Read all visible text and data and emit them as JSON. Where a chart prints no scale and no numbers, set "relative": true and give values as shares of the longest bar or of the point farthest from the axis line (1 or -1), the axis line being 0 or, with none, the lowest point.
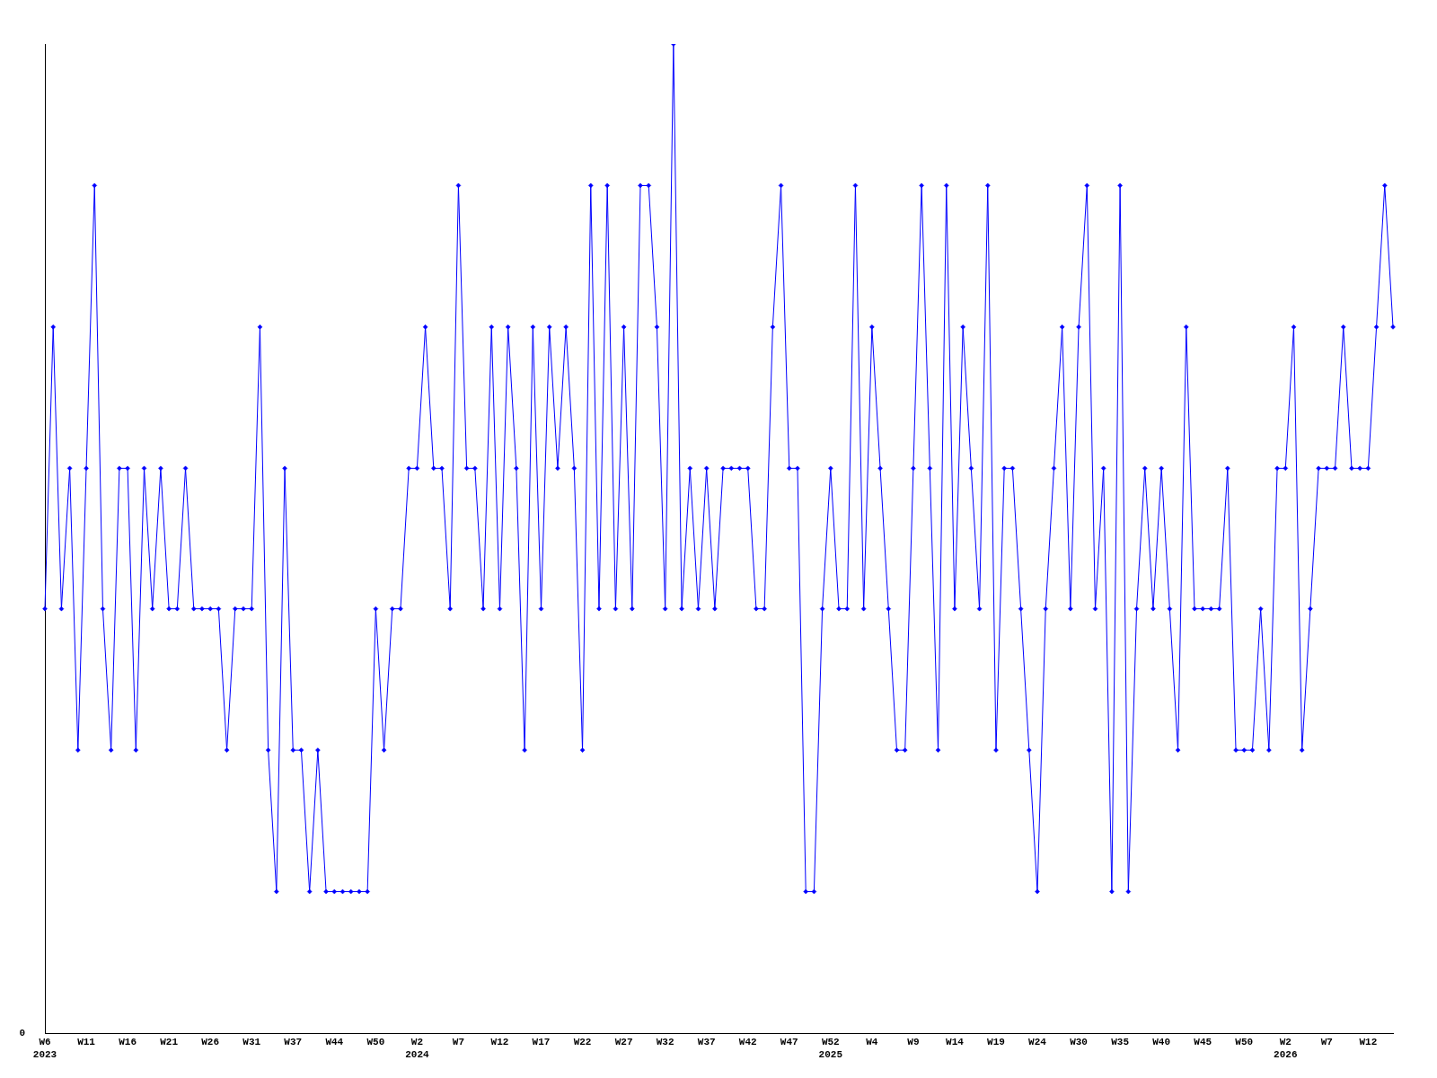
{
  "chart_data": {
    "type": "line",
    "relative": true,
    "marker": "diamond",
    "line_style": "solid",
    "legend": false,
    "grid": false,
    "annotations": [
      "0"
    ],
    "categories": [
      "W6\n2023",
      null,
      null,
      null,
      null,
      "W11",
      null,
      null,
      null,
      null,
      "W16",
      null,
      null,
      null,
      null,
      "W21",
      null,
      null,
      null,
      null,
      "W26",
      null,
      null,
      null,
      null,
      "W31",
      null,
      null,
      null,
      null,
      "W37",
      null,
      null,
      null,
      null,
      "W44",
      null,
      null,
      null,
      null,
      "W50",
      null,
      null,
      null,
      null,
      "W2\n2024",
      null,
      null,
      null,
      null,
      "W7",
      null,
      null,
      null,
      null,
      "W12",
      null,
      null,
      null,
      null,
      "W17",
      null,
      null,
      null,
      null,
      "W22",
      null,
      null,
      null,
      null,
      "W27",
      null,
      null,
      null,
      null,
      "W32",
      null,
      null,
      null,
      null,
      "W37",
      null,
      null,
      null,
      null,
      "W42",
      null,
      null,
      null,
      null,
      "W47",
      null,
      null,
      null,
      null,
      "W52\n2025",
      null,
      null,
      null,
      null,
      "W4",
      null,
      null,
      null,
      null,
      "W9",
      null,
      null,
      null,
      null,
      "W14",
      null,
      null,
      null,
      null,
      "W19",
      null,
      null,
      null,
      null,
      "W24",
      null,
      null,
      null,
      null,
      "W30",
      null,
      null,
      null,
      null,
      "W35",
      null,
      null,
      null,
      null,
      "W40",
      null,
      null,
      null,
      null,
      "W45",
      null,
      null,
      null,
      null,
      "W50",
      null,
      null,
      null,
      null,
      "W2\n2026",
      null,
      null,
      null,
      null,
      "W7",
      null,
      null,
      null,
      null,
      "W12",
      null,
      null,
      null
    ],
    "series": [
      {
        "color": "#0000ff",
        "values": [
          0.429,
          0.714,
          0.429,
          0.571,
          0.286,
          0.571,
          0.857,
          0.429,
          0.286,
          0.571,
          0.571,
          0.286,
          0.571,
          0.429,
          0.571,
          0.429,
          0.429,
          0.571,
          0.429,
          0.429,
          0.429,
          0.429,
          0.286,
          0.429,
          0.429,
          0.429,
          0.714,
          0.286,
          0.143,
          0.571,
          0.286,
          0.286,
          0.143,
          0.286,
          0.143,
          0.143,
          0.143,
          0.143,
          0.143,
          0.143,
          0.429,
          0.286,
          0.429,
          0.429,
          0.571,
          0.571,
          0.714,
          0.571,
          0.571,
          0.429,
          0.857,
          0.571,
          0.571,
          0.429,
          0.714,
          0.429,
          0.714,
          0.571,
          0.286,
          0.714,
          0.429,
          0.714,
          0.571,
          0.714,
          0.571,
          0.286,
          0.857,
          0.429,
          0.857,
          0.429,
          0.714,
          0.429,
          0.857,
          0.857,
          0.714,
          0.429,
          1,
          0.429,
          0.571,
          0.429,
          0.571,
          0.429,
          0.571,
          0.571,
          0.571,
          0.571,
          0.429,
          0.429,
          0.714,
          0.857,
          0.571,
          0.571,
          0.143,
          0.143,
          0.429,
          0.571,
          0.429,
          0.429,
          0.857,
          0.429,
          0.714,
          0.571,
          0.429,
          0.286,
          0.286,
          0.571,
          0.857,
          0.571,
          0.286,
          0.857,
          0.429,
          0.714,
          0.571,
          0.429,
          0.857,
          0.286,
          0.571,
          0.571,
          0.429,
          0.286,
          0.143,
          0.429,
          0.571,
          0.714,
          0.429,
          0.714,
          0.857,
          0.429,
          0.571,
          0.143,
          0.857,
          0.143,
          0.429,
          0.571,
          0.429,
          0.571,
          0.429,
          0.286,
          0.714,
          0.429,
          0.429,
          0.429,
          0.429,
          0.571,
          0.286,
          0.286,
          0.286,
          0.429,
          0.286,
          0.571,
          0.571,
          0.714,
          0.286,
          0.429,
          0.571,
          0.571,
          0.571,
          0.714,
          0.571,
          0.571,
          0.571,
          0.714,
          0.857,
          0.714
        ]
      }
    ]
  }
}
